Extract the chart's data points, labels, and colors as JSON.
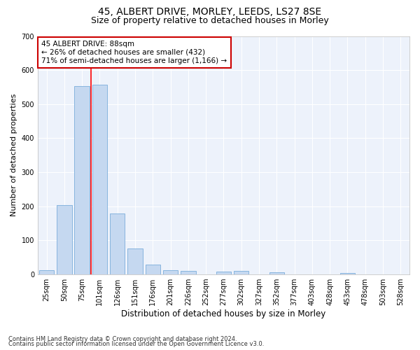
{
  "title_line1": "45, ALBERT DRIVE, MORLEY, LEEDS, LS27 8SE",
  "title_line2": "Size of property relative to detached houses in Morley",
  "xlabel": "Distribution of detached houses by size in Morley",
  "ylabel": "Number of detached properties",
  "bar_color": "#c5d8f0",
  "bar_edge_color": "#7aadda",
  "background_color": "#edf2fb",
  "grid_color": "#d0d8e8",
  "categories": [
    "25sqm",
    "50sqm",
    "75sqm",
    "101sqm",
    "126sqm",
    "151sqm",
    "176sqm",
    "201sqm",
    "226sqm",
    "252sqm",
    "277sqm",
    "302sqm",
    "327sqm",
    "352sqm",
    "377sqm",
    "403sqm",
    "428sqm",
    "453sqm",
    "478sqm",
    "503sqm",
    "528sqm"
  ],
  "values": [
    13,
    204,
    553,
    558,
    178,
    77,
    29,
    12,
    10,
    0,
    8,
    10,
    0,
    6,
    0,
    0,
    0,
    5,
    0,
    0,
    0
  ],
  "ylim": [
    0,
    700
  ],
  "yticks": [
    0,
    100,
    200,
    300,
    400,
    500,
    600,
    700
  ],
  "red_line_index": 2.5,
  "annotation_line1": "45 ALBERT DRIVE: 88sqm",
  "annotation_line2": "← 26% of detached houses are smaller (432)",
  "annotation_line3": "71% of semi-detached houses are larger (1,166) →",
  "annotation_box_color": "#ffffff",
  "annotation_border_color": "#cc0000",
  "footnote_line1": "Contains HM Land Registry data © Crown copyright and database right 2024.",
  "footnote_line2": "Contains public sector information licensed under the Open Government Licence v3.0.",
  "title_fontsize": 10,
  "subtitle_fontsize": 9,
  "tick_fontsize": 7,
  "ylabel_fontsize": 8,
  "xlabel_fontsize": 8.5,
  "annotation_fontsize": 7.5,
  "footnote_fontsize": 6
}
